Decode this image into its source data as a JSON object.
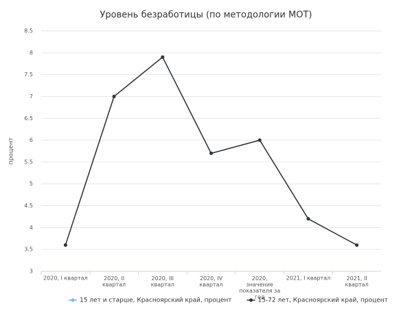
{
  "chart_data": {
    "type": "line",
    "title": "Уровень безработицы (по методологии МОТ)",
    "y_label": "процент",
    "categories": [
      "2020, I квартал",
      "2020, II квартал",
      "2020, III квартал",
      "2020, IV квартал",
      "2020, значение показателя за год",
      "2021, I квартал",
      "2021, II квартал"
    ],
    "series": [
      {
        "name": "15 лет и старше, Красноярский край, процент",
        "color": "#7cb5ec",
        "values": [
          3.6,
          7.0,
          7.9,
          5.7,
          6.0,
          4.2,
          3.6
        ]
      },
      {
        "name": "15-72 лет, Красноярский край, процент",
        "color": "#333333",
        "values": [
          3.6,
          7.0,
          7.9,
          5.7,
          6.0,
          4.2,
          3.6
        ]
      }
    ],
    "ylim": [
      3,
      8.5
    ],
    "yticks": [
      3,
      3.5,
      4,
      4.5,
      5,
      5.5,
      6,
      6.5,
      7,
      7.5,
      8,
      8.5
    ],
    "grid": true
  }
}
